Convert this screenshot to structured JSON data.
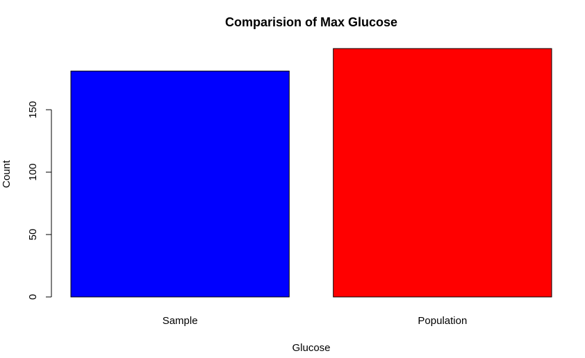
{
  "chart_data": {
    "type": "bar",
    "title": "Comparision of Max Glucose",
    "xlabel": "Glucose",
    "ylabel": "Count",
    "categories": [
      "Sample",
      "Population"
    ],
    "values": [
      181,
      199
    ],
    "colors": [
      "#0000ff",
      "#ff0000"
    ],
    "ylim": [
      0,
      199
    ],
    "yticks": [
      0,
      50,
      100,
      150
    ],
    "grid": false,
    "legend": "none"
  }
}
